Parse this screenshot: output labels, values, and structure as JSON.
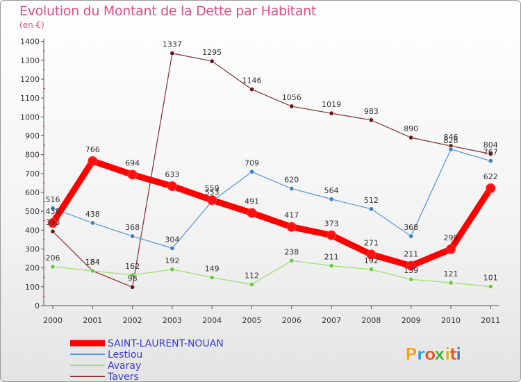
{
  "title": "Evolution du Montant de la Dette par Habitant",
  "subtitle": "(en €)",
  "brand": "Proxiti",
  "chart_data": {
    "type": "line",
    "title": "Evolution du Montant de la Dette par Habitant",
    "ylabel": "(en €)",
    "xlabel": "",
    "ylim": [
      0,
      1400
    ],
    "grid": false,
    "legend": "bottom-left",
    "x": [
      "2000",
      "2001",
      "2002",
      "2003",
      "2004",
      "2005",
      "2006",
      "2007",
      "2008",
      "2009",
      "2010",
      "2011"
    ],
    "yticks": [
      0,
      100,
      200,
      300,
      400,
      500,
      600,
      700,
      800,
      900,
      1000,
      1100,
      1200,
      1300,
      1400
    ],
    "series": [
      {
        "name": "SAINT-LAURENT-NOUAN",
        "color": "#ff0000",
        "point_color": "#ff1010",
        "values": [
          438,
          766,
          694,
          633,
          559,
          491,
          417,
          373,
          271,
          211,
          299,
          622
        ]
      },
      {
        "name": "Lestiou",
        "color": "#5a9ad8",
        "point_color": "#3d7fc8",
        "values": [
          516,
          438,
          368,
          304,
          553,
          709,
          620,
          564,
          512,
          368,
          828,
          767
        ]
      },
      {
        "name": "Avaray",
        "color": "#9ee070",
        "point_color": "#6cc83c",
        "values": [
          206,
          184,
          162,
          192,
          149,
          112,
          238,
          211,
          192,
          139,
          121,
          101
        ]
      },
      {
        "name": "Tavers",
        "color": "#8b3a3a",
        "point_color": "#6a1818",
        "values": [
          393,
          184,
          98,
          1337,
          1295,
          1146,
          1056,
          1019,
          983,
          890,
          846,
          804
        ]
      }
    ]
  }
}
